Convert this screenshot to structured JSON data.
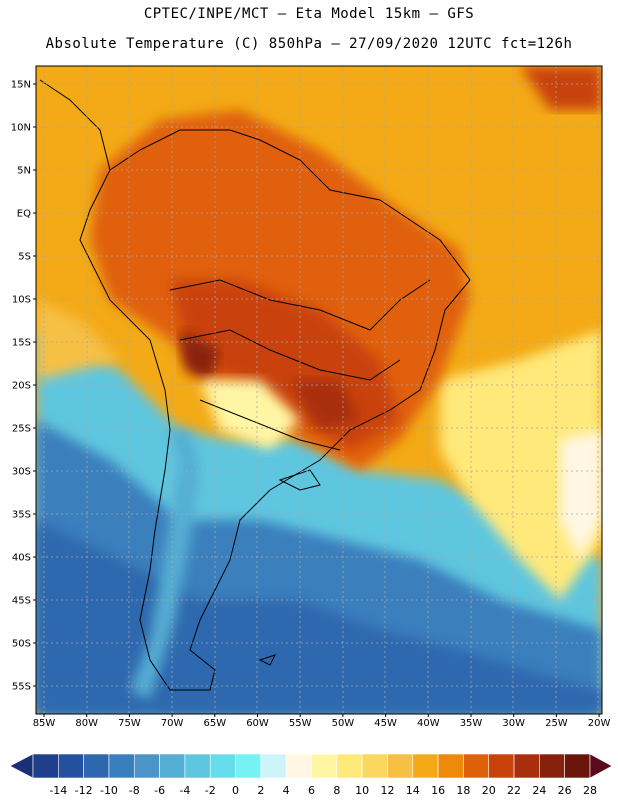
{
  "header": {
    "line1": "CPTEC/INPE/MCT —  Eta Model 15km — GFS",
    "line2": "Absolute Temperature (C) 850hPa — 27/09/2020 12UTC fct=126h"
  },
  "lat_ticks": [
    "15N",
    "10N",
    "5N",
    "EQ",
    "5S",
    "10S",
    "15S",
    "20S",
    "25S",
    "30S",
    "35S",
    "40S",
    "45S",
    "50S",
    "55S"
  ],
  "lon_ticks": [
    "85W",
    "80W",
    "75W",
    "70W",
    "65W",
    "60W",
    "55W",
    "50W",
    "45W",
    "40W",
    "35W",
    "30W",
    "25W",
    "20W"
  ],
  "colorbar": {
    "labels": [
      "-14",
      "-12",
      "-10",
      "-8",
      "-6",
      "-4",
      "-2",
      "0",
      "2",
      "4",
      "6",
      "8",
      "10",
      "12",
      "14",
      "16",
      "18",
      "20",
      "22",
      "24",
      "26",
      "28"
    ],
    "colors": [
      "#1f3e8c",
      "#23509f",
      "#2d68ae",
      "#3a7fbd",
      "#4a94c8",
      "#55aed3",
      "#5fc6df",
      "#68dcea",
      "#74f2f4",
      "#cdf4fa",
      "#fff7e3",
      "#fff6a4",
      "#ffe97a",
      "#fad75f",
      "#f6c044",
      "#f3aa16",
      "#ed8a0a",
      "#e0600a",
      "#c9420b",
      "#a82e0d",
      "#88200e",
      "#6a150b"
    ],
    "left_arrow_color": "#1b2f74",
    "right_arrow_color": "#5a0a1e"
  }
}
